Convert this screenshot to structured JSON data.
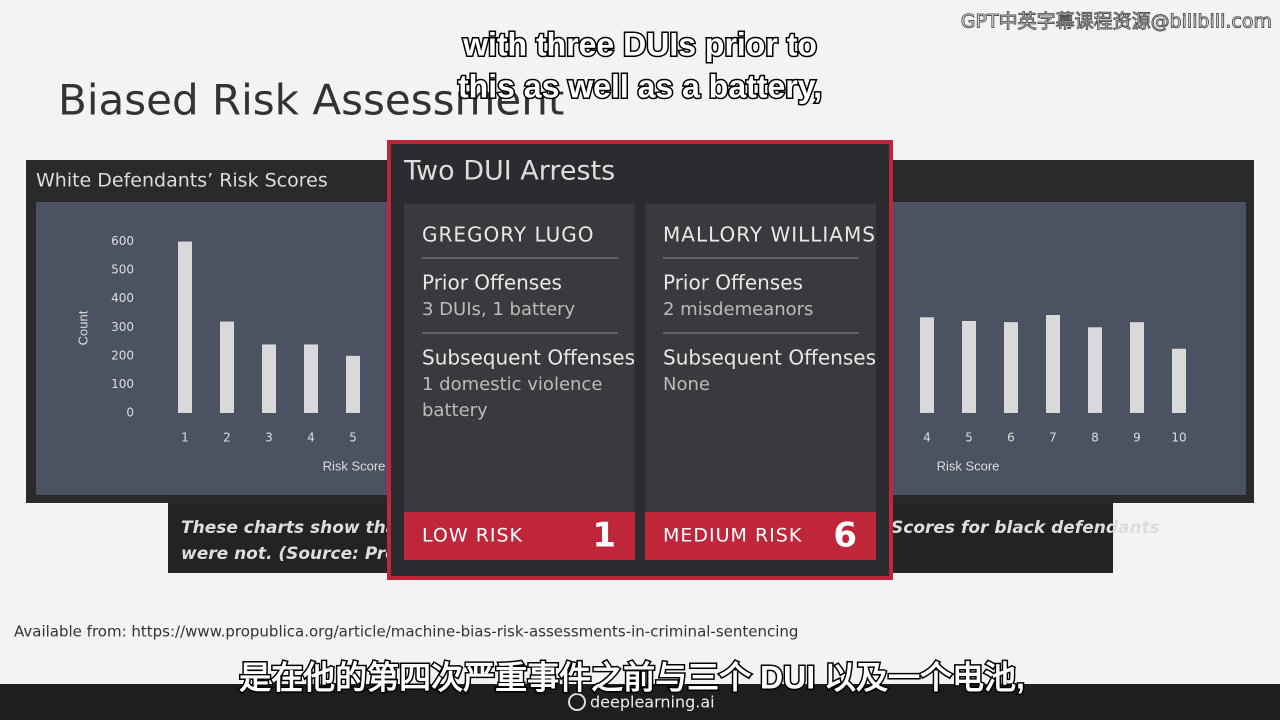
{
  "watermark": "GPT中英字幕课程资源@bilibili.com",
  "subtitles": {
    "top": [
      "with three DUIs prior to",
      "this as well as a battery,"
    ],
    "bottom": "是在他的第四次严重事件之前与三个 DUI 以及一个电池,"
  },
  "slide": {
    "title": "Biased Risk Assessment",
    "source": "Available from: https://www.propublica.org/article/machine-bias-risk-assessments-in-criminal-sentencing"
  },
  "white_chart": {
    "title": "White Defendants’ Risk Scores",
    "y_label": "Count",
    "x_label": "Risk Score",
    "ylim": [
      0,
      700
    ],
    "yticks": [
      0,
      100,
      200,
      300,
      400,
      500,
      600
    ],
    "categories": [
      "1",
      "2",
      "3",
      "4",
      "5"
    ],
    "values": [
      600,
      320,
      240,
      240,
      200
    ],
    "color": "#d9d9d9"
  },
  "black_chart": {
    "x_label": "Risk Score",
    "ylim": [
      0,
      700
    ],
    "categories": [
      "4",
      "5",
      "6",
      "7",
      "8",
      "9",
      "10"
    ],
    "values": [
      335,
      322,
      318,
      343,
      300,
      318,
      225
    ],
    "color": "#d9d9d9"
  },
  "caption": {
    "left": [
      "These charts show that scor",
      "were not. (Source: ProPublic"
    ],
    "right": "Scores for black defendants"
  },
  "card": {
    "title": "Two DUI Arrests",
    "people": [
      {
        "name": "GREGORY LUGO",
        "prior_label": "Prior Offenses",
        "prior": "3 DUIs, 1 battery",
        "subsequent_label": "Subsequent Offenses",
        "subsequent": [
          "1 domestic violence",
          "battery"
        ],
        "risk": "LOW RISK",
        "score": "1"
      },
      {
        "name": "MALLORY WILLIAMS",
        "prior_label": "Prior Offenses",
        "prior": "2 misdemeanors",
        "subsequent_label": "Subsequent Offenses",
        "subsequent": [
          "None"
        ],
        "risk": "MEDIUM RISK",
        "score": "6"
      }
    ]
  },
  "footer": {
    "brand": "deeplearning.ai"
  }
}
